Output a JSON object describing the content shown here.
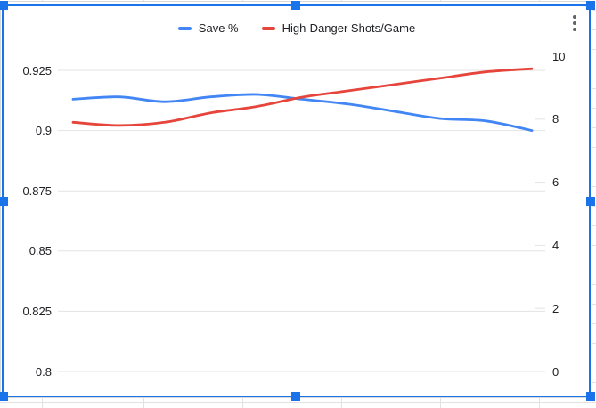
{
  "chart_data": {
    "type": "line",
    "title": "",
    "xlabel": "",
    "ylabel": "",
    "grid": true,
    "smooth_lines": true,
    "legend_position": "top",
    "x_axis_labels_visible": false,
    "point_count": 11,
    "series": [
      {
        "name": "Save %",
        "axis": "left",
        "color": "#4285f4",
        "values": [
          0.913,
          0.914,
          0.912,
          0.914,
          0.915,
          0.913,
          0.911,
          0.908,
          0.905,
          0.904,
          0.9
        ]
      },
      {
        "name": "High-Danger Shots/Game",
        "axis": "right",
        "color": "#e5453b",
        "values": [
          7.9,
          7.8,
          7.9,
          8.2,
          8.4,
          8.7,
          8.9,
          9.1,
          9.3,
          9.5,
          9.6
        ]
      }
    ],
    "left_axis": {
      "min": 0.8,
      "max": 0.925,
      "tick_labels": [
        "0.925",
        "0.9",
        "0.875",
        "0.85",
        "0.825",
        "0.8"
      ],
      "tick_values": [
        0.925,
        0.9,
        0.875,
        0.85,
        0.825,
        0.8
      ]
    },
    "right_axis": {
      "min": 0,
      "max": 10,
      "tick_labels": [
        "10",
        "8",
        "6",
        "4",
        "2",
        "0"
      ],
      "tick_values": [
        10,
        8,
        6,
        4,
        2,
        0
      ]
    }
  },
  "legend": {
    "items": [
      {
        "label": "Save %",
        "color": "#4285f4"
      },
      {
        "label": "High-Danger Shots/Game",
        "color": "#e5453b"
      }
    ]
  },
  "menu": {
    "icon": "more-vert"
  },
  "selection": {
    "state": "chart-selected",
    "handle_count": 8,
    "color": "#1a73e8"
  },
  "colors": {
    "series_blue": "#4285f4",
    "series_red": "#e5453b",
    "selection_blue": "#1a73e8",
    "grid_line": "#e3e3e3",
    "axis_text": "#202124",
    "menu_icon": "#5f6368",
    "card_border": "#d9d9d9"
  }
}
